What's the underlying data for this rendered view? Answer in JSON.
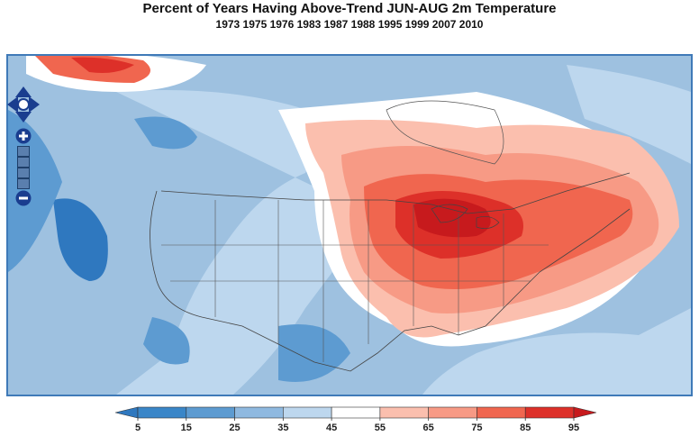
{
  "title": "Percent of Years Having Above-Trend JUN-AUG 2m Temperature",
  "subtitle": "1973 1975 1976 1983 1987 1988 1995 1999 2007 2010",
  "map": {
    "colors": {
      "deep_blue": "#2f78bf",
      "blue": "#5d9bd1",
      "mid_blue": "#8fb9e0",
      "light_blue": "#bdd7ee",
      "white": "#ffffff",
      "light_red": "#fbbfae",
      "salmon": "#f79a85",
      "red": "#f0664f",
      "dark_red": "#dd3029",
      "deep_red": "#c71a1d",
      "border": "#3f7ab8",
      "outline": "#444444"
    },
    "controls": {
      "pan": "pan-arrows-icon",
      "zoom_in": "plus-icon",
      "zoom_out": "minus-icon"
    }
  },
  "legend": {
    "ticks": [
      "5",
      "15",
      "25",
      "35",
      "45",
      "55",
      "65",
      "75",
      "85",
      "95"
    ],
    "colors": [
      "#3a86c8",
      "#5d9bd1",
      "#8fb9e0",
      "#bdd7ee",
      "#ffffff",
      "#fbbfae",
      "#f79a85",
      "#f0664f",
      "#dd3029"
    ],
    "under_color": "#2f78bf",
    "over_color": "#c71a1d"
  }
}
